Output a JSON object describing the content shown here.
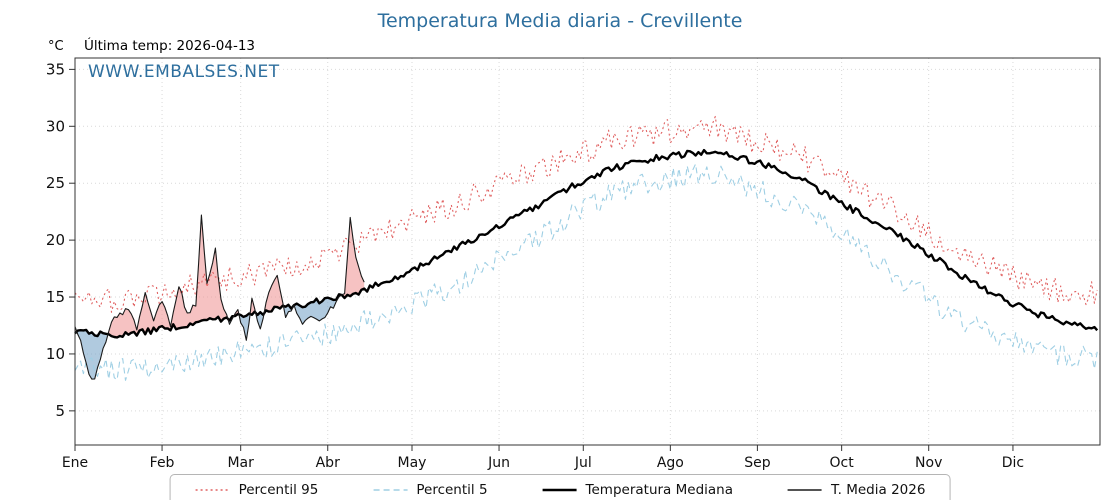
{
  "title": "Temperatura Media diaria - Crevillente",
  "header": {
    "unit": "°C",
    "last_temp": "Última temp: 2026-04-13"
  },
  "watermark": "WWW.EMBALSES.NET",
  "legend": {
    "items": [
      {
        "label": "Percentil 95"
      },
      {
        "label": "Percentil 5"
      },
      {
        "label": "Temperatura Mediana"
      },
      {
        "label": "T. Media 2026"
      }
    ]
  },
  "chart_data": {
    "type": "line",
    "title": "Temperatura Media diaria - Crevillente",
    "ylabel": "°C",
    "annotation": "Última temp: 2026-04-13",
    "ylim": [
      2,
      36
    ],
    "yticks": [
      5,
      10,
      15,
      20,
      25,
      30,
      35
    ],
    "x_tick_labels": [
      "Ene",
      "Feb",
      "Mar",
      "Abr",
      "May",
      "Jun",
      "Jul",
      "Ago",
      "Sep",
      "Oct",
      "Nov",
      "Dic"
    ],
    "month_start_days": [
      0,
      31,
      59,
      90,
      120,
      151,
      181,
      212,
      243,
      273,
      304,
      334
    ],
    "days_in_year": 365,
    "grid": true,
    "legend_position": "bottom",
    "series": [
      {
        "name": "Percentil 95",
        "color": "#e06060",
        "style": "dotted",
        "width": 1.1,
        "noise": 1.1,
        "knot_days": [
          0,
          15,
          31,
          46,
          59,
          74,
          90,
          105,
          120,
          135,
          151,
          166,
          181,
          196,
          212,
          227,
          243,
          258,
          273,
          288,
          304,
          319,
          334,
          349,
          364
        ],
        "knot_values": [
          15.2,
          14.6,
          15.3,
          16.2,
          16.8,
          17.6,
          18.8,
          20.2,
          21.8,
          23.2,
          24.8,
          26.2,
          27.8,
          29.0,
          29.6,
          29.8,
          28.6,
          27.4,
          25.4,
          23.2,
          20.8,
          18.6,
          16.8,
          15.6,
          15.4
        ]
      },
      {
        "name": "Percentil 5",
        "color": "#9fcfe4",
        "style": "dashed",
        "width": 1.1,
        "noise": 1.0,
        "knot_days": [
          0,
          15,
          31,
          46,
          59,
          74,
          90,
          105,
          120,
          135,
          151,
          166,
          181,
          196,
          212,
          227,
          243,
          258,
          273,
          288,
          304,
          319,
          334,
          349,
          364
        ],
        "knot_values": [
          9.2,
          8.6,
          9.0,
          9.6,
          10.2,
          10.8,
          11.8,
          13.0,
          14.4,
          16.0,
          18.2,
          20.4,
          22.8,
          24.4,
          25.4,
          25.8,
          24.4,
          22.8,
          20.4,
          17.8,
          14.8,
          12.6,
          11.0,
          10.0,
          9.6
        ]
      },
      {
        "name": "Temperatura Mediana",
        "color": "#000000",
        "style": "solid",
        "width": 2.4,
        "noise": 0.28,
        "knot_days": [
          0,
          15,
          31,
          46,
          59,
          74,
          90,
          105,
          120,
          135,
          151,
          166,
          181,
          196,
          212,
          227,
          243,
          258,
          273,
          288,
          304,
          319,
          334,
          349,
          364
        ],
        "knot_values": [
          12.0,
          11.6,
          12.2,
          12.8,
          13.4,
          14.0,
          14.8,
          15.8,
          17.4,
          19.2,
          21.2,
          23.2,
          25.2,
          26.6,
          27.4,
          27.6,
          26.8,
          25.4,
          23.2,
          21.2,
          18.8,
          16.4,
          14.4,
          13.0,
          12.2
        ]
      },
      {
        "name": "T. Media 2026",
        "color": "#1a1a1a",
        "style": "solid",
        "width": 1.1,
        "noise": 0.3,
        "points": [
          [
            0,
            12.4
          ],
          [
            2,
            11.2
          ],
          [
            5,
            8.2
          ],
          [
            7,
            7.8
          ],
          [
            10,
            10.5
          ],
          [
            13,
            12.8
          ],
          [
            16,
            13.6
          ],
          [
            19,
            13.9
          ],
          [
            22,
            12.1
          ],
          [
            25,
            15.4
          ],
          [
            28,
            12.9
          ],
          [
            31,
            14.6
          ],
          [
            34,
            12.4
          ],
          [
            37,
            15.9
          ],
          [
            40,
            13.6
          ],
          [
            43,
            14.2
          ],
          [
            45,
            22.2
          ],
          [
            47,
            16.2
          ],
          [
            50,
            19.3
          ],
          [
            52,
            14.8
          ],
          [
            55,
            12.6
          ],
          [
            58,
            13.9
          ],
          [
            61,
            11.2
          ],
          [
            63,
            14.9
          ],
          [
            66,
            12.2
          ],
          [
            69,
            15.4
          ],
          [
            72,
            16.9
          ],
          [
            75,
            13.2
          ],
          [
            78,
            14.3
          ],
          [
            81,
            12.6
          ],
          [
            84,
            13.3
          ],
          [
            87,
            12.9
          ],
          [
            90,
            13.6
          ],
          [
            93,
            14.6
          ],
          [
            96,
            15.3
          ],
          [
            98,
            22.0
          ],
          [
            100,
            18.5
          ],
          [
            103,
            16.3
          ]
        ]
      }
    ],
    "fills": {
      "above_color": "#f09a9a",
      "below_color": "#7ba7c9",
      "opacity": 0.6
    }
  }
}
